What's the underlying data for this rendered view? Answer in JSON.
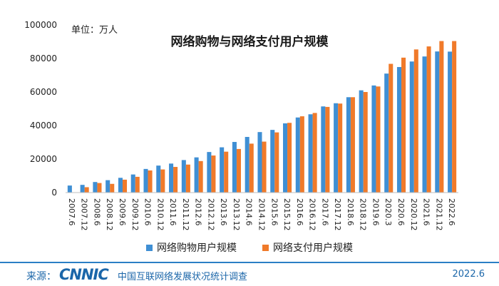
{
  "unit_label": "单位：万人",
  "footer": {
    "source_label": "来源：",
    "brand": "CNNIC",
    "report_name": "中国互联网络发展状况统计调查",
    "date": "2022.6"
  },
  "colors": {
    "series_shopping": "#3f8fd4",
    "series_payment": "#f07a2a"
  },
  "chart_data": {
    "type": "bar",
    "title": "网络购物与网络支付用户规模",
    "xlabel": "",
    "ylabel": "",
    "ylim": [
      0,
      100000
    ],
    "yticks": [
      0,
      20000,
      40000,
      60000,
      80000,
      100000
    ],
    "grid": false,
    "legend_position": "bottom",
    "categories": [
      "2007.6",
      "2007.12",
      "2008.6",
      "2008.12",
      "2009.6",
      "2009.12",
      "2010.6",
      "2010.12",
      "2011.6",
      "2011.12",
      "2012.6",
      "2012.12",
      "2013.6",
      "2013.12",
      "2014.6",
      "2014.12",
      "2015.6",
      "2015.12",
      "2016.6",
      "2016.12",
      "2017.6",
      "2017.12",
      "2018.6",
      "2018.12",
      "2019.6",
      "2020.3",
      "2020.6",
      "2020.12",
      "2021.6",
      "2021.12",
      "2022.6"
    ],
    "series": [
      {
        "name": "网络购物用户规模",
        "color": "#3f8fd4",
        "values": [
          4200,
          4600,
          6300,
          7400,
          8800,
          10800,
          14100,
          16100,
          17300,
          19400,
          21000,
          24200,
          27000,
          30200,
          33200,
          36100,
          37400,
          41300,
          44800,
          46700,
          51400,
          53300,
          56900,
          61000,
          63900,
          71000,
          74900,
          78200,
          81200,
          84200,
          84100
        ]
      },
      {
        "name": "网络支付用户规模",
        "color": "#f07a2a",
        "values": [
          0,
          3200,
          5700,
          5200,
          7700,
          9400,
          13200,
          13800,
          15300,
          16700,
          18800,
          22100,
          24400,
          26000,
          29200,
          30400,
          35900,
          41600,
          45500,
          47500,
          51100,
          53100,
          56900,
          60000,
          63300,
          76800,
          80500,
          85400,
          87200,
          90400,
          90400
        ]
      }
    ]
  }
}
